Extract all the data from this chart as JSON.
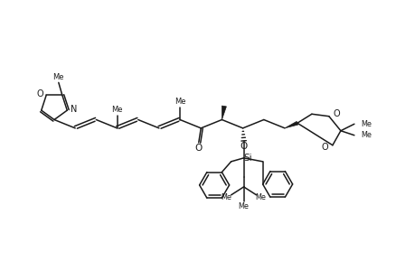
{
  "bg_color": "#ffffff",
  "line_color": "#1a1a1a",
  "line_width": 1.1,
  "figsize": [
    4.6,
    3.0
  ],
  "dpi": 100,
  "xlim": [
    0,
    9.2
  ],
  "ylim": [
    0,
    6.0
  ]
}
